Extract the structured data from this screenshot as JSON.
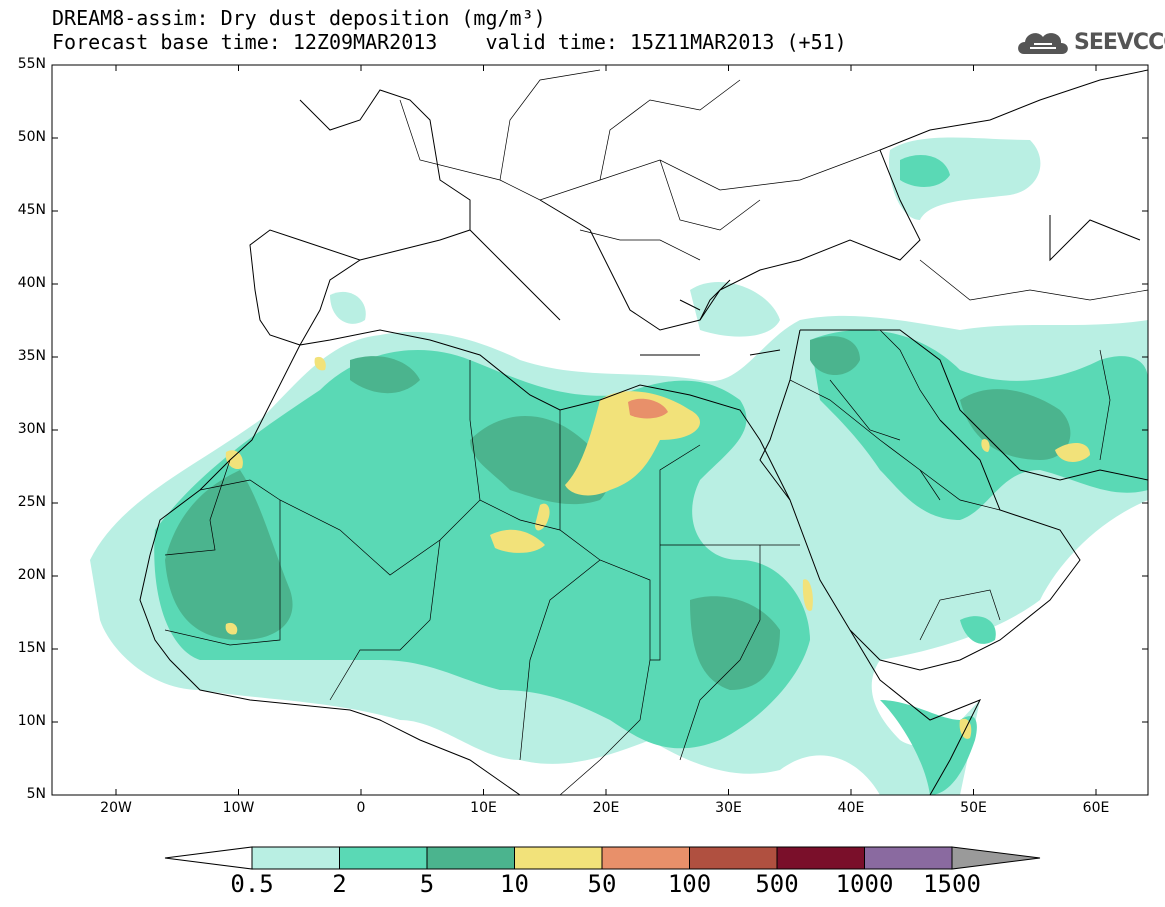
{
  "title_line1": "DREAM8-assim: Dry dust deposition (mg/m³)",
  "title_line2": "Forecast base time: 12Z09MAR2013    valid time: 15Z11MAR2013 (+51)",
  "logo": "SEEVCCC",
  "lat_labels": [
    "55N",
    "50N",
    "45N",
    "40N",
    "35N",
    "30N",
    "25N",
    "20N",
    "15N",
    "10N",
    "5N"
  ],
  "lon_labels": [
    "20W",
    "10W",
    "0",
    "10E",
    "20E",
    "30E",
    "40E",
    "50E",
    "60E"
  ],
  "colorbar": {
    "labels": [
      "0.5",
      "2",
      "5",
      "10",
      "50",
      "100",
      "500",
      "1000",
      "1500"
    ],
    "colors": [
      "#b9efe3",
      "#5ad9b5",
      "#4bb48e",
      "#f2e27a",
      "#e8906a",
      "#b05040",
      "#7a0f2a",
      "#8a6aa0"
    ],
    "under_color": "#ffffff",
    "over_color": "#9a9a9a"
  },
  "colors": {
    "c1": "#b9efe3",
    "c2": "#5ad9b5",
    "c3": "#4bb48e",
    "c4": "#f2e27a",
    "c5": "#e8906a"
  }
}
